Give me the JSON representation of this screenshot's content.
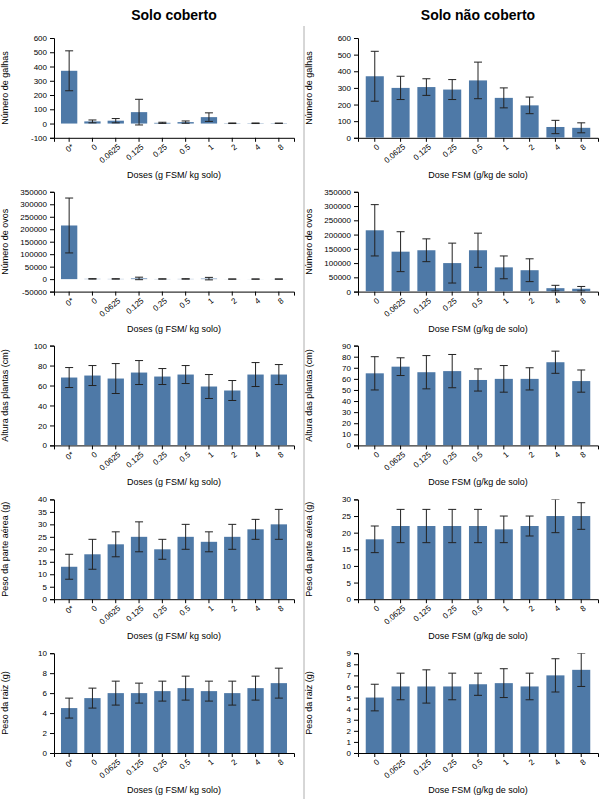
{
  "chart_data": [
    {
      "type": "bar",
      "title": "Solo coberto",
      "categories": [
        "0*",
        "0",
        "0.0625",
        "0.125",
        "0.25",
        "0.5",
        "1",
        "2",
        "4",
        "8"
      ],
      "values": [
        370,
        15,
        20,
        80,
        5,
        10,
        45,
        2,
        2,
        2
      ],
      "errors": [
        140,
        10,
        15,
        90,
        4,
        8,
        30,
        2,
        2,
        1
      ],
      "xlabel": "Doses (g FSM/ kg solo)",
      "ylabel": "Número de galhas",
      "ylim": [
        -100,
        600
      ],
      "yticks": [
        -100,
        0,
        100,
        200,
        300,
        400,
        500,
        600
      ]
    },
    {
      "type": "bar",
      "title": "Solo não coberto",
      "categories": [
        "0",
        "0.0625",
        "0.125",
        "0.25",
        "0.5",
        "1",
        "2",
        "4",
        "8"
      ],
      "values": [
        370,
        300,
        305,
        290,
        345,
        240,
        195,
        65,
        60
      ],
      "errors": [
        150,
        70,
        50,
        60,
        110,
        60,
        50,
        40,
        30
      ],
      "xlabel": "Dose FSM (g/kg de solo)",
      "ylabel": "Número de galhas",
      "ylim": [
        0,
        600
      ],
      "yticks": [
        0,
        100,
        200,
        300,
        400,
        500,
        600
      ]
    },
    {
      "type": "bar",
      "categories": [
        "0*",
        "0",
        "0.0625",
        "0.125",
        "0.25",
        "0.5",
        "1",
        "2",
        "4",
        "8"
      ],
      "values": [
        215000,
        1000,
        800,
        2800,
        600,
        800,
        2000,
        200,
        200,
        200
      ],
      "errors": [
        110000,
        800,
        600,
        5000,
        500,
        700,
        5000,
        200,
        200,
        100
      ],
      "xlabel": "Doses (g FSM/ kg solo)",
      "ylabel": "Número de ovos",
      "ylim": [
        -50000,
        350000
      ],
      "yticks": [
        -50000,
        0,
        50000,
        100000,
        150000,
        200000,
        250000,
        300000,
        350000
      ]
    },
    {
      "type": "bar",
      "categories": [
        "0",
        "0.0625",
        "0.125",
        "0.25",
        "0.5",
        "1",
        "2",
        "4",
        "8"
      ],
      "values": [
        215000,
        140000,
        145000,
        100000,
        145000,
        85000,
        75000,
        12000,
        10000
      ],
      "errors": [
        90000,
        70000,
        40000,
        70000,
        60000,
        40000,
        40000,
        10000,
        8000
      ],
      "xlabel": "Dose FSM (g/kg de solo)",
      "ylabel": "Número de ovos",
      "ylim": [
        0,
        350000
      ],
      "yticks": [
        0,
        50000,
        100000,
        150000,
        200000,
        250000,
        300000,
        350000
      ]
    },
    {
      "type": "bar",
      "categories": [
        "0*",
        "0",
        "0.0625",
        "0.125",
        "0.25",
        "0.5",
        "1",
        "2",
        "4",
        "8"
      ],
      "values": [
        68,
        70,
        67,
        73,
        69,
        71,
        59,
        55,
        71,
        71
      ],
      "errors": [
        10,
        10,
        15,
        12,
        8,
        9,
        12,
        10,
        12,
        10
      ],
      "xlabel": "Doses (g FSM/ kg solo)",
      "ylabel": "Altura das plantas (cm)",
      "ylim": [
        0,
        100
      ],
      "yticks": [
        0,
        20,
        40,
        60,
        80,
        100
      ]
    },
    {
      "type": "bar",
      "categories": [
        "0",
        "0.0625",
        "0.125",
        "0.25",
        "0.5",
        "1",
        "2",
        "4",
        "8"
      ],
      "values": [
        65,
        71,
        66,
        67,
        59,
        60,
        60,
        75,
        58
      ],
      "errors": [
        15,
        8,
        15,
        15,
        10,
        12,
        10,
        10,
        10
      ],
      "xlabel": "Dose FSM (g/kg de solo)",
      "ylabel": "Altura das plantas (cm)",
      "ylim": [
        0,
        90
      ],
      "yticks": [
        0,
        10,
        20,
        30,
        40,
        50,
        60,
        70,
        80,
        90
      ]
    },
    {
      "type": "bar",
      "categories": [
        "0*",
        "0",
        "0.0625",
        "0.125",
        "0.25",
        "0.5",
        "1",
        "2",
        "4",
        "8"
      ],
      "values": [
        13,
        18,
        22,
        25,
        20,
        25,
        23,
        25,
        28,
        30
      ],
      "errors": [
        5,
        6,
        5,
        6,
        4,
        5,
        4,
        5,
        4,
        6
      ],
      "xlabel": "Doses (g FSM/ kg solo)",
      "ylabel": "Peso da parte aérea (g)",
      "ylim": [
        0,
        40
      ],
      "yticks": [
        0,
        5,
        10,
        15,
        20,
        25,
        30,
        35,
        40
      ]
    },
    {
      "type": "bar",
      "categories": [
        "0",
        "0.0625",
        "0.125",
        "0.25",
        "0.5",
        "1",
        "2",
        "4",
        "8"
      ],
      "values": [
        18,
        22,
        22,
        22,
        22,
        21,
        22,
        25,
        25
      ],
      "errors": [
        4,
        5,
        5,
        5,
        5,
        4,
        3,
        5,
        4
      ],
      "xlabel": "Dose FSM (g/kg de solo)",
      "ylabel": "Peso da parte aérea (g)",
      "ylim": [
        0,
        30
      ],
      "yticks": [
        0,
        5,
        10,
        15,
        20,
        25,
        30
      ]
    },
    {
      "type": "bar",
      "categories": [
        "0*",
        "0",
        "0.0625",
        "0.125",
        "0.25",
        "0.5",
        "1",
        "2",
        "4",
        "8"
      ],
      "values": [
        4.5,
        5.5,
        6.0,
        6.0,
        6.2,
        6.5,
        6.2,
        6.0,
        6.5,
        7.0
      ],
      "errors": [
        1.0,
        1.0,
        1.2,
        1.0,
        1.0,
        1.2,
        1.0,
        1.2,
        1.2,
        1.5
      ],
      "xlabel": "Doses (g FSM/ kg solo)",
      "ylabel": "Peso da raiz (g)",
      "ylim": [
        0,
        10
      ],
      "yticks": [
        0,
        2,
        4,
        6,
        8,
        10
      ]
    },
    {
      "type": "bar",
      "categories": [
        "0",
        "0.0625",
        "0.125",
        "0.25",
        "0.5",
        "1",
        "2",
        "4",
        "8"
      ],
      "values": [
        5.0,
        6.0,
        6.0,
        6.0,
        6.2,
        6.3,
        6.0,
        7.0,
        7.5
      ],
      "errors": [
        1.2,
        1.2,
        1.5,
        1.2,
        1.0,
        1.3,
        1.2,
        1.5,
        1.5
      ],
      "xlabel": "Dose FSM (g/kg de solo)",
      "ylabel": "Peso da raiz (g)",
      "ylim": [
        0,
        9
      ],
      "yticks": [
        0,
        1,
        2,
        3,
        4,
        5,
        6,
        7,
        8,
        9
      ]
    }
  ]
}
